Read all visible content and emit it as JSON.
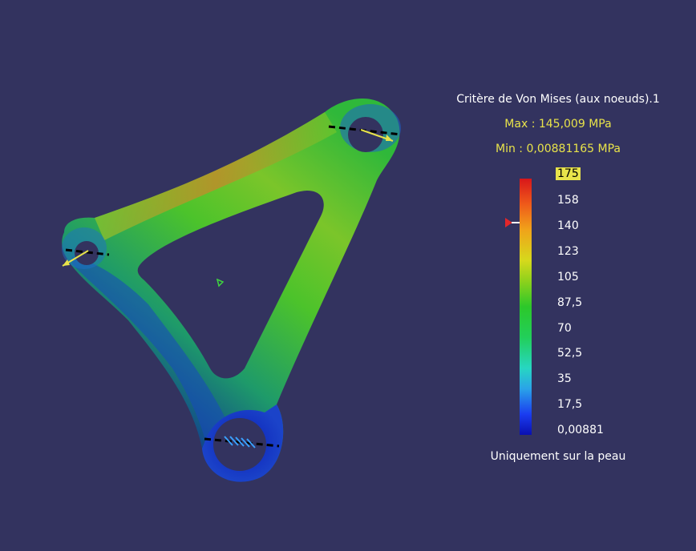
{
  "legend": {
    "title": "Critère de Von Mises (aux noeuds).1",
    "max": "Max : 145,009 MPa",
    "min": "Min : 0,00881165 MPa",
    "scale": [
      "175",
      "158",
      "140",
      "123",
      "105",
      "87,5",
      "70",
      "52,5",
      "35",
      "17,5",
      "0,00881"
    ],
    "footer": "Uniquement sur la peau",
    "highlight_color": "#e8e34a",
    "marker_color": "#e3262a"
  },
  "colors": {
    "background": "#33335f"
  }
}
